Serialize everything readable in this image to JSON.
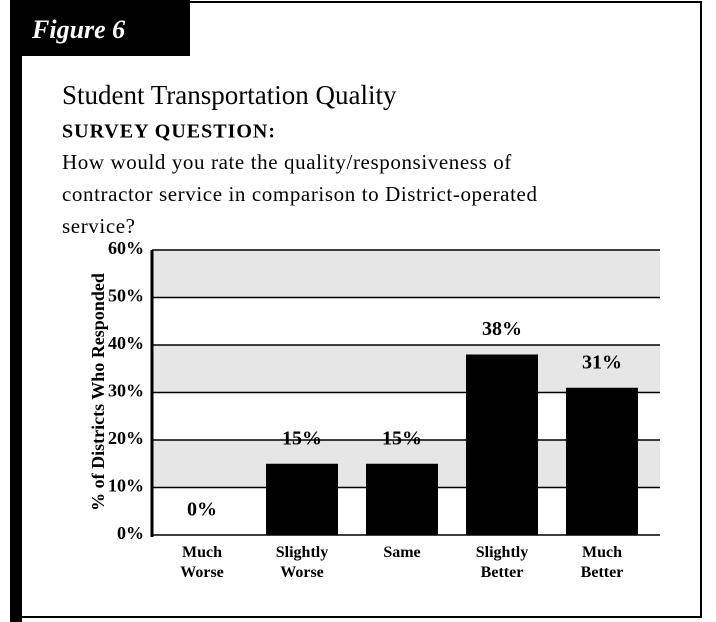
{
  "figure_label": "Figure 6",
  "chart_data": {
    "type": "bar",
    "title": "Student Transportation Quality",
    "subtitle": "SURVEY QUESTION:",
    "question": [
      "How would you rate the quality/responsiveness of",
      "contractor service in comparison to District-operated",
      "service?"
    ],
    "y_label": "% of Districts Who Responded",
    "categories": [
      "Much Worse",
      "Slightly Worse",
      "Same",
      "Slightly Better",
      "Much Better"
    ],
    "values": [
      0,
      15,
      15,
      38,
      31
    ],
    "value_labels": [
      "0%",
      "15%",
      "15%",
      "38%",
      "31%"
    ],
    "color": "#000000",
    "ylim": [
      0,
      60
    ],
    "yticks": [
      {
        "value": 0,
        "label": "0%"
      },
      {
        "value": 10,
        "label": "10%"
      },
      {
        "value": 20,
        "label": "20%"
      },
      {
        "value": 30,
        "label": "30%"
      },
      {
        "value": 40,
        "label": "40%"
      },
      {
        "value": 50,
        "label": "50%"
      },
      {
        "value": 60,
        "label": "60%"
      }
    ],
    "grid": true,
    "band_color": "#e6e6e6"
  }
}
